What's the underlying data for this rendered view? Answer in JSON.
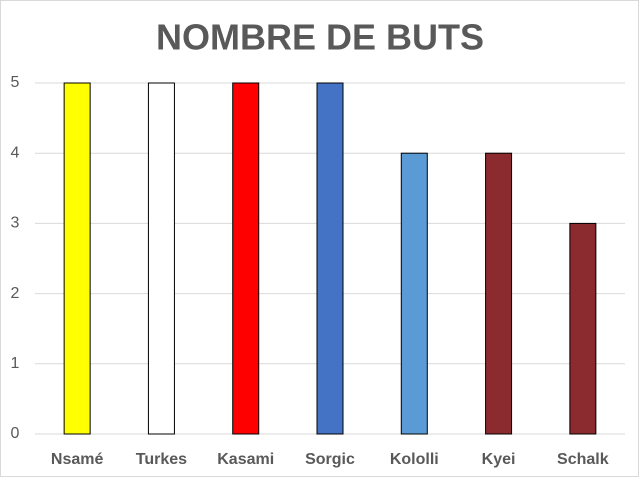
{
  "chart_data": {
    "type": "bar",
    "title": "NOMBRE DE BUTS",
    "categories": [
      "Nsamé",
      "Turkes",
      "Kasami",
      "Sorgic",
      "Kololli",
      "Kyei",
      "Schalk"
    ],
    "values": [
      5,
      5,
      5,
      5,
      4,
      4,
      3
    ],
    "colors": [
      "#ffff00",
      "#ffffff",
      "#ff0000",
      "#4472c4",
      "#5b9bd5",
      "#8b2a2f",
      "#8b2a2f"
    ],
    "ylim": [
      0,
      5
    ],
    "yticks": [
      0,
      1,
      2,
      3,
      4,
      5
    ],
    "grid": true
  }
}
